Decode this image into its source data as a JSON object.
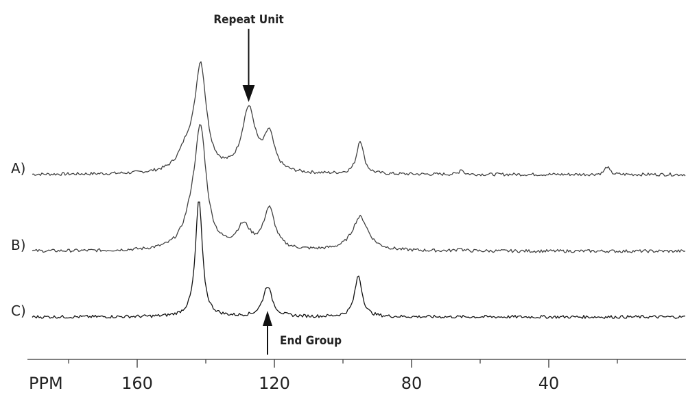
{
  "chart_data": {
    "type": "line",
    "x_axis": {
      "label": "PPM",
      "range": [
        192,
        0
      ],
      "reversed": true,
      "major_ticks": [
        160,
        120,
        80,
        40
      ],
      "minor_ticks": [
        180,
        140,
        100,
        60,
        20
      ],
      "tick_labels": [
        "160",
        "120",
        "80",
        "40"
      ]
    },
    "series": [
      {
        "name": "A)",
        "color": "#404040",
        "peaks": [
          {
            "ppm": 141.5,
            "height": 0.92,
            "width": 2.0
          },
          {
            "ppm": 145.5,
            "height": 0.18,
            "width": 3.0
          },
          {
            "ppm": 127.5,
            "height": 0.56,
            "width": 2.4
          },
          {
            "ppm": 121.5,
            "height": 0.32,
            "width": 1.8
          },
          {
            "ppm": 95.0,
            "height": 0.3,
            "width": 1.2
          },
          {
            "ppm": 65.5,
            "height": 0.05,
            "width": 0.6
          },
          {
            "ppm": 23.0,
            "height": 0.07,
            "width": 0.8
          }
        ]
      },
      {
        "name": "B)",
        "color": "#404040",
        "peaks": [
          {
            "ppm": 141.5,
            "height": 0.98,
            "width": 2.0
          },
          {
            "ppm": 144.0,
            "height": 0.22,
            "width": 3.0
          },
          {
            "ppm": 129.0,
            "height": 0.2,
            "width": 2.4
          },
          {
            "ppm": 121.5,
            "height": 0.36,
            "width": 2.0
          },
          {
            "ppm": 95.0,
            "height": 0.3,
            "width": 2.8
          },
          {
            "ppm": 66.0,
            "height": 0.03,
            "width": 0.6
          }
        ]
      },
      {
        "name": "C)",
        "color": "#111111",
        "peaks": [
          {
            "ppm": 142.0,
            "height": 1.0,
            "width": 1.2
          },
          {
            "ppm": 122.0,
            "height": 0.26,
            "width": 1.6
          },
          {
            "ppm": 95.5,
            "height": 0.35,
            "width": 1.3
          }
        ]
      }
    ],
    "annotations": [
      {
        "text": "Repeat Unit",
        "ppm": 127.5,
        "arrow": "down",
        "target_series": "A)"
      },
      {
        "text": "End Group",
        "ppm": 122.0,
        "arrow": "up",
        "target_series": "C)"
      }
    ]
  }
}
